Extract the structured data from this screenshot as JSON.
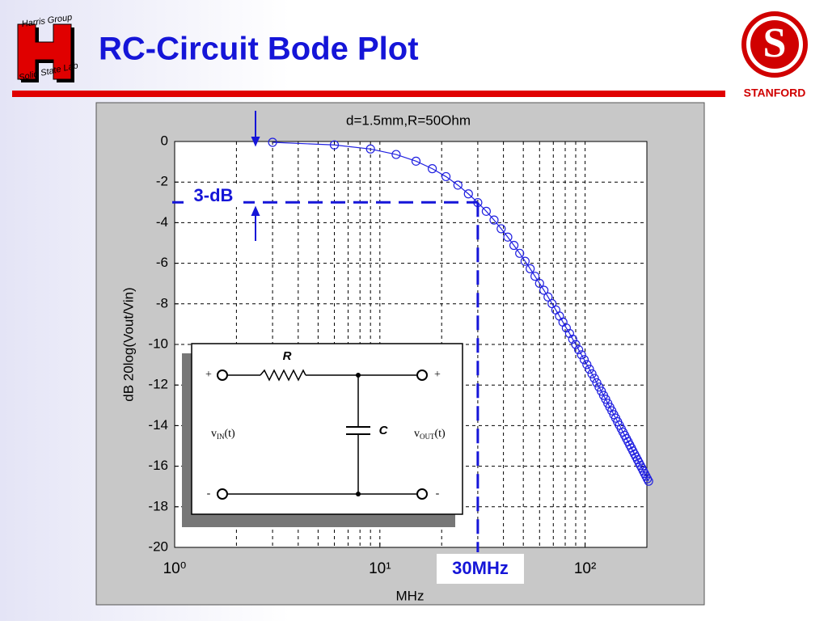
{
  "slide": {
    "title": "RC-Circuit Bode Plot",
    "logo_left_top": "Harris Group",
    "logo_left_bottom": "Solid State Lab",
    "logo_right_letter": "S",
    "logo_right": "STANFORD"
  },
  "chart_data": {
    "type": "line",
    "title": "d=1.5mm,R=50Ohm",
    "xlabel": "MHz",
    "ylabel": "dB 20log(Vout/Vin)",
    "xscale": "log",
    "grid": true,
    "xlim": [
      1,
      200
    ],
    "xticks": [
      {
        "value": 1,
        "label": "10⁰"
      },
      {
        "value": 10,
        "label": "10¹"
      },
      {
        "value": 100,
        "label": "10²"
      }
    ],
    "xminorticks": [
      2,
      3,
      4,
      5,
      6,
      7,
      8,
      9,
      20,
      30,
      40,
      50,
      60,
      70,
      80,
      90
    ],
    "ylim": [
      -20,
      0
    ],
    "yticks": [
      -20,
      -18,
      -16,
      -14,
      -12,
      -10,
      -8,
      -6,
      -4,
      -2,
      0
    ],
    "x": [
      3,
      6,
      9,
      12,
      15,
      18,
      21,
      24,
      27,
      30,
      33,
      36,
      39,
      42,
      45,
      48,
      51,
      54,
      57,
      60,
      63,
      66,
      69,
      72,
      75,
      78,
      81,
      84,
      87,
      90,
      93,
      96,
      99,
      102,
      105,
      108,
      111,
      114,
      117,
      120,
      123,
      126,
      129,
      132,
      135,
      138,
      141,
      144,
      147,
      150,
      153,
      156,
      159,
      162,
      165,
      168,
      171,
      174,
      177,
      180,
      183,
      186,
      189,
      192,
      195,
      198,
      201,
      204
    ],
    "series": [
      {
        "color": "#2020e0",
        "marker": "circle",
        "values": [
          -0.04,
          -0.17,
          -0.37,
          -0.64,
          -0.97,
          -1.34,
          -1.73,
          -2.15,
          -2.58,
          -3.01,
          -3.44,
          -3.87,
          -4.3,
          -4.71,
          -5.12,
          -5.51,
          -5.9,
          -6.27,
          -6.64,
          -6.99,
          -7.33,
          -7.66,
          -7.99,
          -8.3,
          -8.6,
          -8.9,
          -9.19,
          -9.46,
          -9.74,
          -10.0,
          -10.26,
          -10.51,
          -10.75,
          -10.99,
          -11.22,
          -11.45,
          -11.67,
          -11.89,
          -12.1,
          -12.3,
          -12.51,
          -12.7,
          -12.9,
          -13.09,
          -13.27,
          -13.46,
          -13.63,
          -13.81,
          -13.98,
          -14.15,
          -14.32,
          -14.48,
          -14.64,
          -14.79,
          -14.95,
          -15.1,
          -15.25,
          -15.4,
          -15.54,
          -15.68,
          -15.82,
          -15.96,
          -16.09,
          -16.23,
          -16.36,
          -16.49,
          -16.62,
          -16.74
        ]
      }
    ],
    "reference_lines": {
      "y": -3,
      "x": 30
    },
    "annotations": {
      "y_line_label": "3-dB",
      "x_line_label": "30MHz"
    }
  },
  "inset": {
    "resistor": "R",
    "capacitor": "C",
    "plus_left": "+",
    "plus_right": "+",
    "minus_left": "-",
    "minus_right": "-",
    "vin": {
      "main": "v",
      "sub": "IN",
      "tail": "(t)"
    },
    "vout": {
      "main": "v",
      "sub": "OUT",
      "tail": "(t)"
    }
  }
}
